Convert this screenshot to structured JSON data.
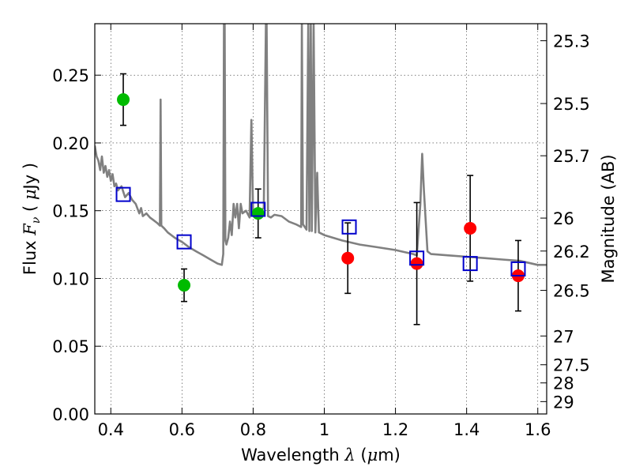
{
  "chart_data": {
    "type": "scatter",
    "xlabel": "Wavelength  λ (μm)",
    "ylabel": "Flux  Fν  ( μJy )",
    "y2label": "Magnitude (AB)",
    "xlim": [
      0.355,
      1.625
    ],
    "ylim": [
      0.0,
      0.288
    ],
    "grid": true,
    "x_ticks": [
      0.4,
      0.6,
      0.8,
      1.0,
      1.2,
      1.4,
      1.6
    ],
    "x_tick_labels": [
      "0.4",
      "0.6",
      "0.8",
      "1",
      "1.2",
      "1.4",
      "1.6"
    ],
    "y_ticks": [
      0.0,
      0.05,
      0.1,
      0.15,
      0.2,
      0.25
    ],
    "y_tick_labels": [
      "0.00",
      "0.05",
      "0.10",
      "0.15",
      "0.20",
      "0.25"
    ],
    "y2_ticks": [
      25.3,
      25.5,
      25.7,
      26,
      26.2,
      26.5,
      27,
      27.5,
      28,
      29
    ],
    "y2_tick_labels": [
      "25.3",
      "25.5",
      "25.7",
      "26",
      "26.2",
      "26.5",
      "27",
      "27.5",
      "28",
      "29"
    ],
    "series": [
      {
        "marker": "circle",
        "color": "#00bb00",
        "points": [
          {
            "x": 0.435,
            "y": 0.232,
            "yerr": 0.019
          },
          {
            "x": 0.606,
            "y": 0.095,
            "yerr": 0.012
          },
          {
            "x": 0.814,
            "y": 0.148,
            "yerr": 0.018
          }
        ]
      },
      {
        "marker": "circle",
        "color": "#ff0000",
        "points": [
          {
            "x": 1.066,
            "y": 0.115,
            "yerr": 0.026
          },
          {
            "x": 1.26,
            "y": 0.111,
            "yerr": 0.045
          },
          {
            "x": 1.41,
            "y": 0.137,
            "yerr": 0.039
          },
          {
            "x": 1.545,
            "y": 0.102,
            "yerr": 0.026
          }
        ]
      },
      {
        "marker": "open-square",
        "color": "#0000cc",
        "points": [
          {
            "x": 0.435,
            "y": 0.162
          },
          {
            "x": 0.606,
            "y": 0.127
          },
          {
            "x": 0.814,
            "y": 0.151
          },
          {
            "x": 1.07,
            "y": 0.138
          },
          {
            "x": 1.26,
            "y": 0.115
          },
          {
            "x": 1.41,
            "y": 0.111
          },
          {
            "x": 1.545,
            "y": 0.107
          }
        ]
      },
      {
        "type": "line",
        "color": "#808080",
        "points": [
          [
            0.355,
            0.198
          ],
          [
            0.36,
            0.19
          ],
          [
            0.365,
            0.187
          ],
          [
            0.37,
            0.18
          ],
          [
            0.375,
            0.19
          ],
          [
            0.38,
            0.178
          ],
          [
            0.385,
            0.183
          ],
          [
            0.39,
            0.175
          ],
          [
            0.395,
            0.18
          ],
          [
            0.4,
            0.172
          ],
          [
            0.405,
            0.177
          ],
          [
            0.41,
            0.168
          ],
          [
            0.415,
            0.17
          ],
          [
            0.42,
            0.165
          ],
          [
            0.43,
            0.168
          ],
          [
            0.44,
            0.16
          ],
          [
            0.45,
            0.163
          ],
          [
            0.46,
            0.158
          ],
          [
            0.47,
            0.155
          ],
          [
            0.48,
            0.148
          ],
          [
            0.485,
            0.152
          ],
          [
            0.49,
            0.146
          ],
          [
            0.5,
            0.148
          ],
          [
            0.51,
            0.145
          ],
          [
            0.52,
            0.143
          ],
          [
            0.53,
            0.141
          ],
          [
            0.538,
            0.139
          ],
          [
            0.54,
            0.232
          ],
          [
            0.542,
            0.139
          ],
          [
            0.55,
            0.137
          ],
          [
            0.56,
            0.134
          ],
          [
            0.58,
            0.13
          ],
          [
            0.6,
            0.127
          ],
          [
            0.62,
            0.123
          ],
          [
            0.64,
            0.12
          ],
          [
            0.66,
            0.117
          ],
          [
            0.68,
            0.114
          ],
          [
            0.7,
            0.111
          ],
          [
            0.712,
            0.11
          ],
          [
            0.716,
            0.118
          ],
          [
            0.718,
            0.288
          ],
          [
            0.72,
            0.288
          ],
          [
            0.722,
            0.128
          ],
          [
            0.725,
            0.125
          ],
          [
            0.73,
            0.13
          ],
          [
            0.735,
            0.142
          ],
          [
            0.74,
            0.132
          ],
          [
            0.745,
            0.155
          ],
          [
            0.75,
            0.145
          ],
          [
            0.755,
            0.155
          ],
          [
            0.76,
            0.137
          ],
          [
            0.765,
            0.155
          ],
          [
            0.77,
            0.148
          ],
          [
            0.78,
            0.15
          ],
          [
            0.79,
            0.145
          ],
          [
            0.795,
            0.217
          ],
          [
            0.8,
            0.147
          ],
          [
            0.81,
            0.148
          ],
          [
            0.82,
            0.15
          ],
          [
            0.83,
            0.152
          ],
          [
            0.836,
            0.288
          ],
          [
            0.838,
            0.288
          ],
          [
            0.842,
            0.146
          ],
          [
            0.85,
            0.145
          ],
          [
            0.86,
            0.147
          ],
          [
            0.88,
            0.146
          ],
          [
            0.9,
            0.142
          ],
          [
            0.92,
            0.14
          ],
          [
            0.935,
            0.138
          ],
          [
            0.937,
            0.288
          ],
          [
            0.94,
            0.14
          ],
          [
            0.95,
            0.136
          ],
          [
            0.955,
            0.288
          ],
          [
            0.958,
            0.135
          ],
          [
            0.962,
            0.288
          ],
          [
            0.965,
            0.135
          ],
          [
            0.97,
            0.288
          ],
          [
            0.975,
            0.134
          ],
          [
            0.98,
            0.178
          ],
          [
            0.985,
            0.134
          ],
          [
            1.0,
            0.132
          ],
          [
            1.05,
            0.128
          ],
          [
            1.1,
            0.125
          ],
          [
            1.15,
            0.123
          ],
          [
            1.2,
            0.121
          ],
          [
            1.25,
            0.118
          ],
          [
            1.26,
            0.117
          ],
          [
            1.27,
            0.155
          ],
          [
            1.275,
            0.192
          ],
          [
            1.28,
            0.165
          ],
          [
            1.29,
            0.12
          ],
          [
            1.3,
            0.118
          ],
          [
            1.35,
            0.117
          ],
          [
            1.4,
            0.116
          ],
          [
            1.45,
            0.115
          ],
          [
            1.5,
            0.114
          ],
          [
            1.55,
            0.113
          ],
          [
            1.6,
            0.11
          ],
          [
            1.625,
            0.11
          ]
        ]
      }
    ]
  }
}
